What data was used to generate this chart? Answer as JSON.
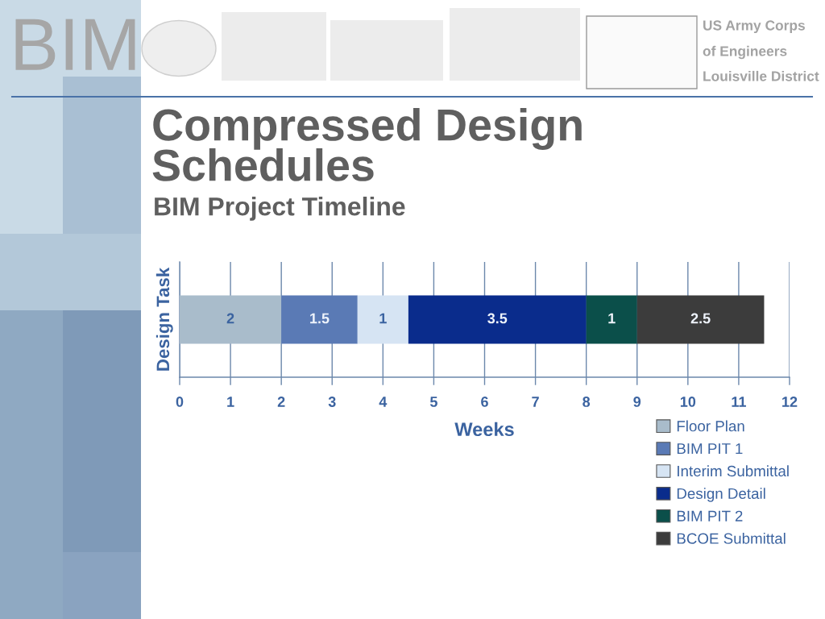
{
  "chart_data": {
    "type": "bar",
    "title": "Compressed Design Schedules",
    "subtitle": "BIM Project Timeline",
    "xlabel": "Weeks",
    "ylabel": "Design Task",
    "annotations": [
      "BIM",
      "US Army Corps",
      "of Engineers",
      "Louisville District"
    ],
    "categories": [
      null
    ],
    "orientation": "horizontal",
    "stacked": true,
    "series": [
      {
        "name": "Floor Plan",
        "color": "#a9bccb",
        "values": [
          2
        ]
      },
      {
        "name": "BIM PIT 1",
        "color": "#5a7ab5",
        "values": [
          1.5
        ]
      },
      {
        "name": "Interim Submittal",
        "color": "#d6e4f3",
        "values": [
          1
        ]
      },
      {
        "name": "Design Detail",
        "color": "#0a2c8c",
        "values": [
          3.5
        ]
      },
      {
        "name": "BIM PIT 2",
        "color": "#0b4f4a",
        "values": [
          1
        ]
      },
      {
        "name": "BCOE Submittal",
        "color": "#3c3c3c",
        "values": [
          2.5
        ]
      }
    ],
    "xlim": [
      0,
      12
    ],
    "xticks": [
      0,
      1,
      2,
      3,
      4,
      5,
      6,
      7,
      8,
      9,
      10,
      11,
      12
    ],
    "grid": "x",
    "data_labels": true,
    "legend": "bottom right",
    "tick_labels": "x"
  }
}
